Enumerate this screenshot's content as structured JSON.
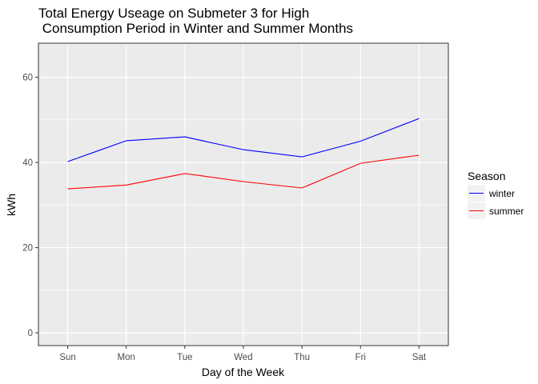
{
  "chart_data": {
    "type": "line",
    "title_lines": [
      "Total Energy Useage on Submeter 3 for High",
      " Consumption Period in Winter and Summer Months"
    ],
    "xlabel": "Day of the Week",
    "ylabel": "kWh",
    "categories": [
      "Sun",
      "Mon",
      "Tue",
      "Wed",
      "Thu",
      "Fri",
      "Sat"
    ],
    "ylim": [
      -3,
      68
    ],
    "yticks": [
      0,
      20,
      40,
      60
    ],
    "grid": true,
    "legend": {
      "title": "Season",
      "position": "right"
    },
    "series": [
      {
        "name": "winter",
        "color": "#0000ff",
        "values": [
          40.2,
          45.1,
          46.0,
          43.0,
          41.3,
          45.0,
          50.3
        ]
      },
      {
        "name": "summer",
        "color": "#ff0000",
        "values": [
          33.8,
          34.7,
          37.4,
          35.5,
          34.0,
          39.8,
          41.7
        ]
      }
    ],
    "panel_color": "#ebebeb",
    "grid_color": "#ffffff"
  }
}
